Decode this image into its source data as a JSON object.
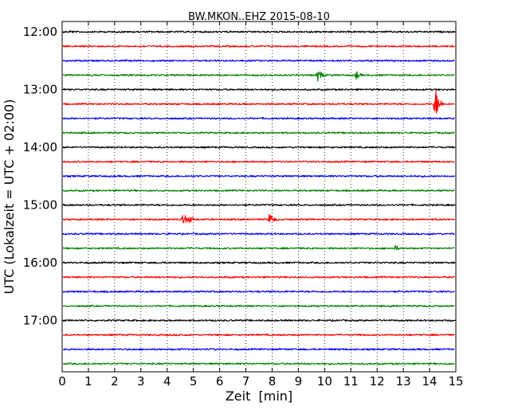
{
  "chart_data": {
    "type": "line",
    "title": "BW.MKON..EHZ 2015-08-10",
    "xlabel": "Zeit  [min]",
    "ylabel": "UTC (Lokalzeit = UTC + 02:00)",
    "xlim": [
      0,
      15
    ],
    "x_ticks": [
      "0",
      "1",
      "2",
      "3",
      "4",
      "5",
      "6",
      "7",
      "8",
      "9",
      "10",
      "11",
      "12",
      "13",
      "14",
      "15"
    ],
    "y_ticks": [
      "12:00",
      "13:00",
      "14:00",
      "15:00",
      "16:00",
      "17:00"
    ],
    "grid": "vertical dotted",
    "color_cycle": [
      "#000000",
      "#ff0000",
      "#0000ff",
      "#008000"
    ],
    "series": [
      {
        "start": "12:00",
        "color": "#000000",
        "events": [
          {
            "minute": 0.3,
            "amp": 0.15
          },
          {
            "minute": 9.4,
            "amp": 0.15
          }
        ]
      },
      {
        "start": "12:15",
        "color": "#ff0000",
        "events": [
          {
            "minute": 3.1,
            "amp": 0.1
          }
        ]
      },
      {
        "start": "12:30",
        "color": "#0000ff",
        "events": [
          {
            "minute": 2.4,
            "amp": 0.1
          },
          {
            "minute": 6.0,
            "amp": 0.1
          }
        ]
      },
      {
        "start": "12:45",
        "color": "#008000",
        "events": [
          {
            "minute": 9.75,
            "amp": 0.55
          },
          {
            "minute": 11.2,
            "amp": 0.35
          }
        ]
      },
      {
        "start": "13:00",
        "color": "#000000",
        "events": []
      },
      {
        "start": "13:15",
        "color": "#ff0000",
        "events": [
          {
            "minute": 14.2,
            "amp": 1.3
          },
          {
            "minute": 10.5,
            "amp": 0.1
          }
        ]
      },
      {
        "start": "13:30",
        "color": "#0000ff",
        "events": []
      },
      {
        "start": "13:45",
        "color": "#008000",
        "events": []
      },
      {
        "start": "14:00",
        "color": "#000000",
        "events": []
      },
      {
        "start": "14:15",
        "color": "#ff0000",
        "events": []
      },
      {
        "start": "14:30",
        "color": "#0000ff",
        "events": []
      },
      {
        "start": "14:45",
        "color": "#008000",
        "events": []
      },
      {
        "start": "15:00",
        "color": "#000000",
        "events": []
      },
      {
        "start": "15:15",
        "color": "#ff0000",
        "events": [
          {
            "minute": 4.6,
            "amp": 0.55
          },
          {
            "minute": 4.85,
            "amp": 0.35
          },
          {
            "minute": 7.9,
            "amp": 0.55
          }
        ]
      },
      {
        "start": "15:30",
        "color": "#0000ff",
        "events": []
      },
      {
        "start": "15:45",
        "color": "#008000",
        "events": [
          {
            "minute": 12.7,
            "amp": 0.25
          }
        ]
      },
      {
        "start": "16:00",
        "color": "#000000",
        "events": [
          {
            "minute": 3.8,
            "amp": 0.1
          }
        ]
      },
      {
        "start": "16:15",
        "color": "#ff0000",
        "events": []
      },
      {
        "start": "16:30",
        "color": "#0000ff",
        "events": []
      },
      {
        "start": "16:45",
        "color": "#008000",
        "events": []
      },
      {
        "start": "17:00",
        "color": "#000000",
        "events": [
          {
            "minute": 5.6,
            "amp": 0.1
          }
        ]
      },
      {
        "start": "17:15",
        "color": "#ff0000",
        "events": []
      },
      {
        "start": "17:30",
        "color": "#0000ff",
        "events": [
          {
            "minute": 5.8,
            "amp": 0.1
          }
        ]
      },
      {
        "start": "17:45",
        "color": "#008000",
        "events": []
      }
    ]
  }
}
